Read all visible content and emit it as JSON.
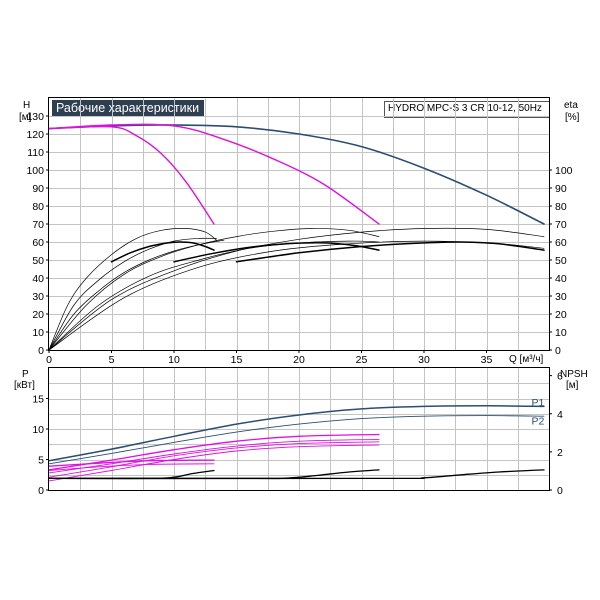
{
  "header": {
    "title": "Рабочие характеристики",
    "model": "HYDRO MPC-S 3 CR 10-12, 50Hz"
  },
  "colors": {
    "title_bg": "#2f3f52",
    "power_curve": "#2a4d72",
    "magenta": "#e010e0",
    "curve": "#000000",
    "grid": "#c4c4c4"
  },
  "chart_data": [
    {
      "type": "line",
      "panel": "top",
      "left_axis": {
        "label": "H",
        "unit": "[м]",
        "ticks": [
          0,
          10,
          20,
          30,
          40,
          50,
          60,
          70,
          80,
          90,
          100,
          110,
          120,
          130
        ],
        "range": [
          0,
          140
        ]
      },
      "right_axis": {
        "label": "eta",
        "unit": "[%]",
        "ticks": [
          0,
          10,
          20,
          30,
          40,
          50,
          60,
          70,
          80,
          90,
          100
        ],
        "range": [
          0,
          140
        ]
      },
      "x_axis": {
        "label": "Q [м³/ч]",
        "ticks": [
          0,
          5,
          10,
          15,
          20,
          25,
          30,
          35
        ],
        "range": [
          0,
          40
        ]
      },
      "grid": true,
      "series": [
        {
          "role": "head_max",
          "color": "#2a4d72",
          "width": 1.6,
          "x": [
            0,
            5,
            10,
            15,
            20,
            25,
            30,
            35,
            39.6
          ],
          "y": [
            123,
            124.5,
            125,
            124,
            120,
            113,
            101,
            86,
            70
          ]
        },
        {
          "role": "head_1pump",
          "color": "#e010e0",
          "width": 1.4,
          "x": [
            0,
            5,
            7,
            9,
            11,
            13.2
          ],
          "y": [
            123,
            124,
            119,
            109,
            93,
            70
          ]
        },
        {
          "role": "head_2pumps",
          "color": "#e010e0",
          "width": 1.4,
          "x": [
            0,
            5,
            10,
            14,
            18,
            22,
            26.4
          ],
          "y": [
            123,
            125,
            124.5,
            117,
            106,
            92,
            70
          ]
        },
        {
          "role": "eta_thin_1",
          "color": "#000000",
          "width": 0.7,
          "x": [
            0,
            1.5,
            3,
            5,
            7,
            9,
            11,
            12.5,
            13.4
          ],
          "y": [
            0,
            25,
            40,
            53,
            62,
            66.5,
            67.5,
            65.5,
            61
          ]
        },
        {
          "role": "eta_thin_2",
          "color": "#000000",
          "width": 0.7,
          "x": [
            0,
            2,
            4,
            6,
            8,
            10,
            12,
            13.4
          ],
          "y": [
            0,
            25,
            39,
            49,
            56,
            60.5,
            62,
            62
          ]
        },
        {
          "role": "eta_thin_3",
          "color": "#000000",
          "width": 0.7,
          "x": [
            0,
            2,
            4,
            6,
            8,
            10,
            12,
            14
          ],
          "y": [
            0,
            20,
            33,
            43,
            50,
            55,
            58.5,
            61
          ]
        },
        {
          "role": "eta_thin_4",
          "color": "#000000",
          "width": 0.7,
          "x": [
            0,
            3,
            6,
            9,
            12,
            15,
            18,
            21,
            24,
            26.4
          ],
          "y": [
            0,
            25,
            42,
            52,
            58.5,
            63,
            66,
            67.5,
            66.5,
            63
          ]
        },
        {
          "role": "eta_thin_5",
          "color": "#000000",
          "width": 0.7,
          "x": [
            0,
            4,
            8,
            12,
            16,
            20,
            24,
            26.4
          ],
          "y": [
            0,
            25,
            41,
            50,
            56.5,
            59.5,
            60.5,
            60
          ]
        },
        {
          "role": "eta_thin_6",
          "color": "#000000",
          "width": 0.7,
          "x": [
            0,
            5,
            10,
            15,
            20,
            25,
            30,
            35,
            39.6
          ],
          "y": [
            0,
            28,
            44,
            55,
            61.5,
            65.5,
            67.5,
            67,
            63
          ]
        },
        {
          "role": "eta_thin_7",
          "color": "#000000",
          "width": 0.7,
          "x": [
            0,
            6,
            12,
            18,
            24,
            30,
            36,
            39.6
          ],
          "y": [
            0,
            29,
            46,
            55,
            59,
            60.5,
            59,
            56.5
          ]
        },
        {
          "role": "eta_bold_1",
          "color": "#000000",
          "width": 1.5,
          "x": [
            5,
            6.5,
            8,
            9.5,
            10.5,
            11.5,
            12.5,
            13.2
          ],
          "y": [
            49,
            54,
            57.5,
            59.5,
            60,
            59.5,
            57.5,
            55.5
          ]
        },
        {
          "role": "eta_bold_2",
          "color": "#000000",
          "width": 1.5,
          "x": [
            10,
            13,
            16,
            19,
            22,
            24.5,
            26.4
          ],
          "y": [
            49,
            53.5,
            57,
            59,
            59.5,
            58,
            55.5
          ]
        },
        {
          "role": "eta_bold_3",
          "color": "#000000",
          "width": 1.5,
          "x": [
            15,
            20,
            25,
            30,
            33,
            36,
            39.6
          ],
          "y": [
            49,
            54,
            57.5,
            59.5,
            60,
            59,
            55.5
          ]
        }
      ]
    },
    {
      "type": "line",
      "panel": "bottom",
      "left_axis": {
        "label": "P",
        "unit": "[кВт]",
        "ticks": [
          0,
          5,
          10,
          15
        ],
        "range": [
          0,
          20
        ]
      },
      "right_axis": {
        "label": "NPSH",
        "unit": "[м]",
        "ticks": [
          0,
          2,
          4,
          6
        ],
        "range": [
          0,
          6.4
        ]
      },
      "x_axis": {
        "range": [
          0,
          40
        ]
      },
      "grid": true,
      "labels": [
        {
          "text": "P1",
          "x": 39.4,
          "y": 14.4
        },
        {
          "text": "P2",
          "x": 39.4,
          "y": 11.4
        }
      ],
      "series": [
        {
          "role": "P1",
          "color": "#2a4d72",
          "width": 1.5,
          "x": [
            0,
            5,
            10,
            15,
            20,
            25,
            30,
            35,
            39.6
          ],
          "y": [
            4.8,
            6.7,
            8.8,
            10.8,
            12.3,
            13.3,
            13.7,
            13.8,
            13.7
          ]
        },
        {
          "role": "P2",
          "color": "#2a4d72",
          "width": 0.9,
          "x": [
            0,
            5,
            10,
            15,
            20,
            25,
            30,
            35,
            39.6
          ],
          "y": [
            4.3,
            6.0,
            7.8,
            9.5,
            10.8,
            11.7,
            12.1,
            12.2,
            12.1
          ]
        },
        {
          "role": "P1_magenta_a",
          "color": "#e010e0",
          "width": 1.3,
          "x": [
            0,
            5,
            10,
            15,
            20,
            26.4
          ],
          "y": [
            3.3,
            4.9,
            6.6,
            8.0,
            8.8,
            9.1
          ]
        },
        {
          "role": "P1_magenta_b",
          "color": "#e010e0",
          "width": 0.9,
          "x": [
            0,
            5,
            10,
            15,
            20,
            26.4
          ],
          "y": [
            2.8,
            4.3,
            5.9,
            7.2,
            8.0,
            8.3
          ]
        },
        {
          "role": "P2_magenta_a",
          "color": "#e010e0",
          "width": 0.9,
          "x": [
            0,
            5,
            10,
            15,
            20,
            26.4
          ],
          "y": [
            2.1,
            3.8,
            5.6,
            6.9,
            7.6,
            7.9
          ]
        },
        {
          "role": "P2_magenta_b",
          "color": "#e010e0",
          "width": 0.9,
          "x": [
            0,
            5,
            10,
            15,
            20,
            26.4
          ],
          "y": [
            1.5,
            3.2,
            5.0,
            6.4,
            7.1,
            7.4
          ]
        },
        {
          "role": "P_single_a",
          "color": "#e010e0",
          "width": 1.3,
          "x": [
            0,
            4,
            8,
            13.2
          ],
          "y": [
            3.9,
            4.4,
            4.8,
            4.9
          ]
        },
        {
          "role": "P_single_b",
          "color": "#e010e0",
          "width": 0.9,
          "x": [
            0,
            4,
            8,
            13.2
          ],
          "y": [
            3.2,
            3.8,
            4.2,
            4.3
          ]
        },
        {
          "role": "NPSH_1",
          "color": "#000000",
          "width": 1.3,
          "x": [
            0,
            8,
            10,
            11.5,
            13.2
          ],
          "y": [
            1.9,
            1.9,
            2.1,
            2.7,
            3.2
          ]
        },
        {
          "role": "NPSH_2",
          "color": "#000000",
          "width": 1.3,
          "x": [
            0,
            16,
            19,
            21.5,
            24,
            26.4
          ],
          "y": [
            1.9,
            1.9,
            1.95,
            2.4,
            2.95,
            3.3
          ]
        },
        {
          "role": "NPSH_3",
          "color": "#000000",
          "width": 1.3,
          "x": [
            0,
            27,
            30,
            33,
            36,
            39.6
          ],
          "y": [
            1.9,
            1.9,
            2.0,
            2.5,
            2.95,
            3.3
          ]
        }
      ]
    }
  ]
}
